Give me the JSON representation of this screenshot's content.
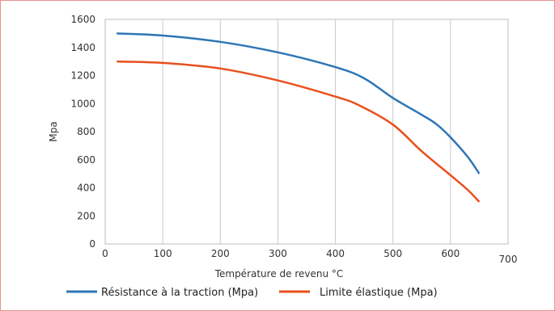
{
  "chart_data": {
    "type": "line",
    "title": "",
    "xlabel": "Température de revenu °C",
    "ylabel": "Mpa",
    "xlim": [
      0,
      700
    ],
    "ylim": [
      0,
      1600
    ],
    "x_ticks": [
      0,
      100,
      200,
      300,
      400,
      500,
      600,
      700
    ],
    "y_ticks": [
      0,
      200,
      400,
      600,
      800,
      1000,
      1200,
      1400,
      1600
    ],
    "grid": "vertical",
    "legend": "bottom",
    "series": [
      {
        "name": "Résistance à la traction (Mpa)",
        "color": "#2e75b6",
        "points": [
          [
            20,
            1500
          ],
          [
            100,
            1485
          ],
          [
            200,
            1440
          ],
          [
            300,
            1365
          ],
          [
            400,
            1260
          ],
          [
            450,
            1180
          ],
          [
            500,
            1040
          ],
          [
            550,
            920
          ],
          [
            575,
            855
          ],
          [
            600,
            760
          ],
          [
            630,
            620
          ],
          [
            650,
            500
          ]
        ]
      },
      {
        "name": "Limite élastique (Mpa)",
        "color": "#e8501e",
        "points": [
          [
            20,
            1300
          ],
          [
            100,
            1290
          ],
          [
            200,
            1250
          ],
          [
            300,
            1165
          ],
          [
            400,
            1050
          ],
          [
            440,
            990
          ],
          [
            500,
            850
          ],
          [
            550,
            660
          ],
          [
            600,
            490
          ],
          [
            630,
            385
          ],
          [
            650,
            300
          ]
        ]
      }
    ]
  }
}
